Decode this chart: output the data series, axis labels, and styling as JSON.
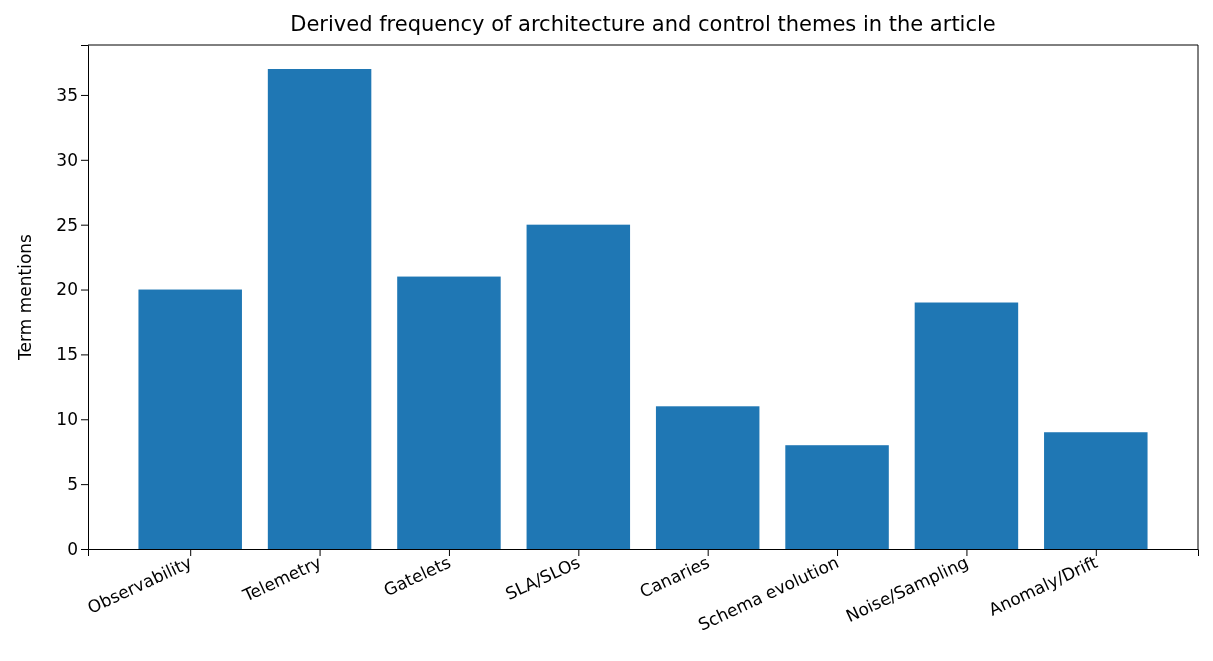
{
  "chart_data": {
    "type": "bar",
    "title": "Derived frequency of architecture and control themes in the article",
    "ylabel": "Term mentions",
    "categories": [
      "Observability",
      "Telemetry",
      "Gatelets",
      "SLA/SLOs",
      "Canaries",
      "Schema evolution",
      "Noise/Sampling",
      "Anomaly/Drift"
    ],
    "values": [
      20,
      37,
      21,
      25,
      11,
      8,
      19,
      9
    ],
    "color": "#1f77b4",
    "ylim": [
      0,
      38.85
    ],
    "yticks": [
      0,
      5,
      10,
      15,
      20,
      25,
      30,
      35
    ]
  }
}
